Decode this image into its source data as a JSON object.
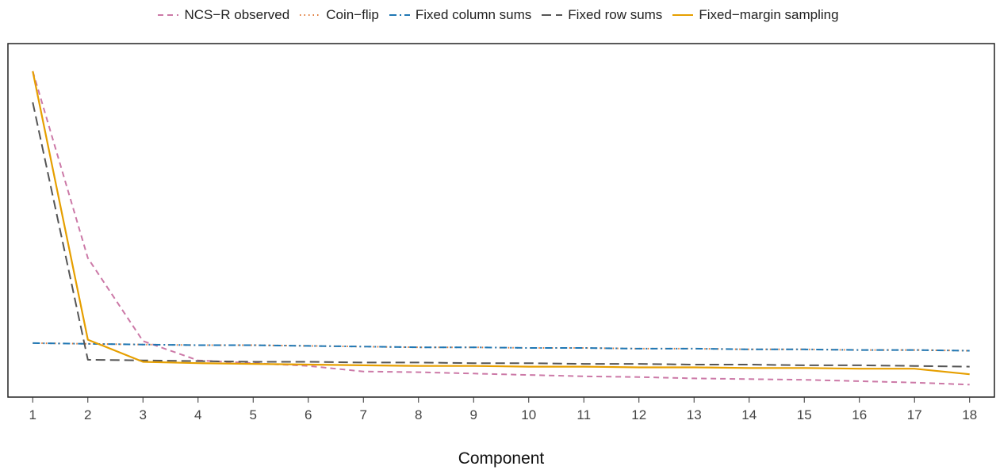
{
  "chart_data": {
    "type": "line",
    "title": "",
    "xlabel": "Component",
    "ylabel": "",
    "x": [
      1,
      2,
      3,
      4,
      5,
      6,
      7,
      8,
      9,
      10,
      11,
      12,
      13,
      14,
      15,
      16,
      17,
      18
    ],
    "xlim": [
      0.55,
      18.45
    ],
    "ylim": [
      -0.21,
      4.9
    ],
    "grid": false,
    "legend_position": "top-center",
    "series": [
      {
        "name": "NCS−R observed",
        "color": "#CC79A7",
        "dash": "dashed",
        "values": [
          4.5,
          1.8,
          0.6,
          0.32,
          0.28,
          0.24,
          0.16,
          0.15,
          0.13,
          0.11,
          0.09,
          0.08,
          0.06,
          0.05,
          0.04,
          0.02,
          0.0,
          -0.03
        ]
      },
      {
        "name": "Coin−flip",
        "color": "#E07B39",
        "dash": "dotted",
        "values": [
          0.57,
          0.56,
          0.55,
          0.54,
          0.54,
          0.53,
          0.52,
          0.51,
          0.51,
          0.5,
          0.5,
          0.49,
          0.49,
          0.48,
          0.48,
          0.47,
          0.47,
          0.46
        ]
      },
      {
        "name": "Fixed column sums",
        "color": "#1F77B4",
        "dash": "dashdot",
        "values": [
          0.57,
          0.56,
          0.55,
          0.54,
          0.54,
          0.53,
          0.52,
          0.51,
          0.51,
          0.5,
          0.5,
          0.49,
          0.49,
          0.48,
          0.48,
          0.47,
          0.47,
          0.46
        ]
      },
      {
        "name": "Fixed row sums",
        "color": "#555555",
        "dash": "longdash",
        "values": [
          4.05,
          0.33,
          0.32,
          0.31,
          0.3,
          0.3,
          0.29,
          0.29,
          0.28,
          0.28,
          0.27,
          0.27,
          0.26,
          0.26,
          0.25,
          0.25,
          0.24,
          0.23
        ]
      },
      {
        "name": "Fixed−margin sampling",
        "color": "#E69F00",
        "dash": "solid",
        "values": [
          4.5,
          0.62,
          0.3,
          0.28,
          0.27,
          0.26,
          0.25,
          0.24,
          0.24,
          0.23,
          0.23,
          0.22,
          0.22,
          0.21,
          0.21,
          0.2,
          0.2,
          0.12
        ]
      }
    ]
  }
}
